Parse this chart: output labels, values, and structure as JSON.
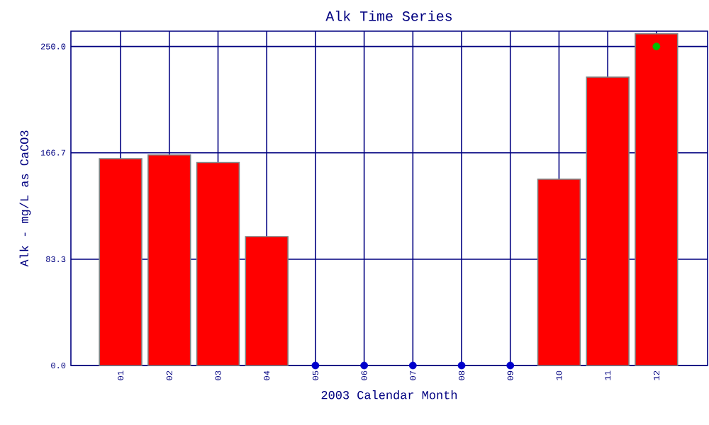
{
  "chart_data": {
    "type": "bar",
    "title": "Alk Time Series",
    "xlabel": "2003 Calendar Month",
    "ylabel": "Alk - mg/L as CaCO3",
    "categories": [
      "01",
      "02",
      "03",
      "04",
      "05",
      "06",
      "07",
      "08",
      "09",
      "10",
      "11",
      "12"
    ],
    "series": [
      {
        "color": "#ff0000",
        "values": [
          162,
          165,
          159,
          101,
          null,
          null,
          null,
          null,
          null,
          146,
          226,
          260
        ]
      },
      {
        "type": "scatter",
        "color": "#0000cc",
        "values": [
          null,
          null,
          null,
          null,
          0,
          0,
          0,
          0,
          0,
          null,
          null,
          null
        ]
      },
      {
        "type": "scatter",
        "color": "#00c000",
        "values": [
          null,
          null,
          null,
          null,
          null,
          null,
          null,
          null,
          null,
          null,
          null,
          250
        ]
      }
    ],
    "ylim": [
      0,
      262
    ],
    "yticks": [
      {
        "value": 0,
        "label": "0.0"
      },
      83.3,
      166.7,
      {
        "value": 250,
        "label": "250.0"
      }
    ],
    "grid": true
  }
}
